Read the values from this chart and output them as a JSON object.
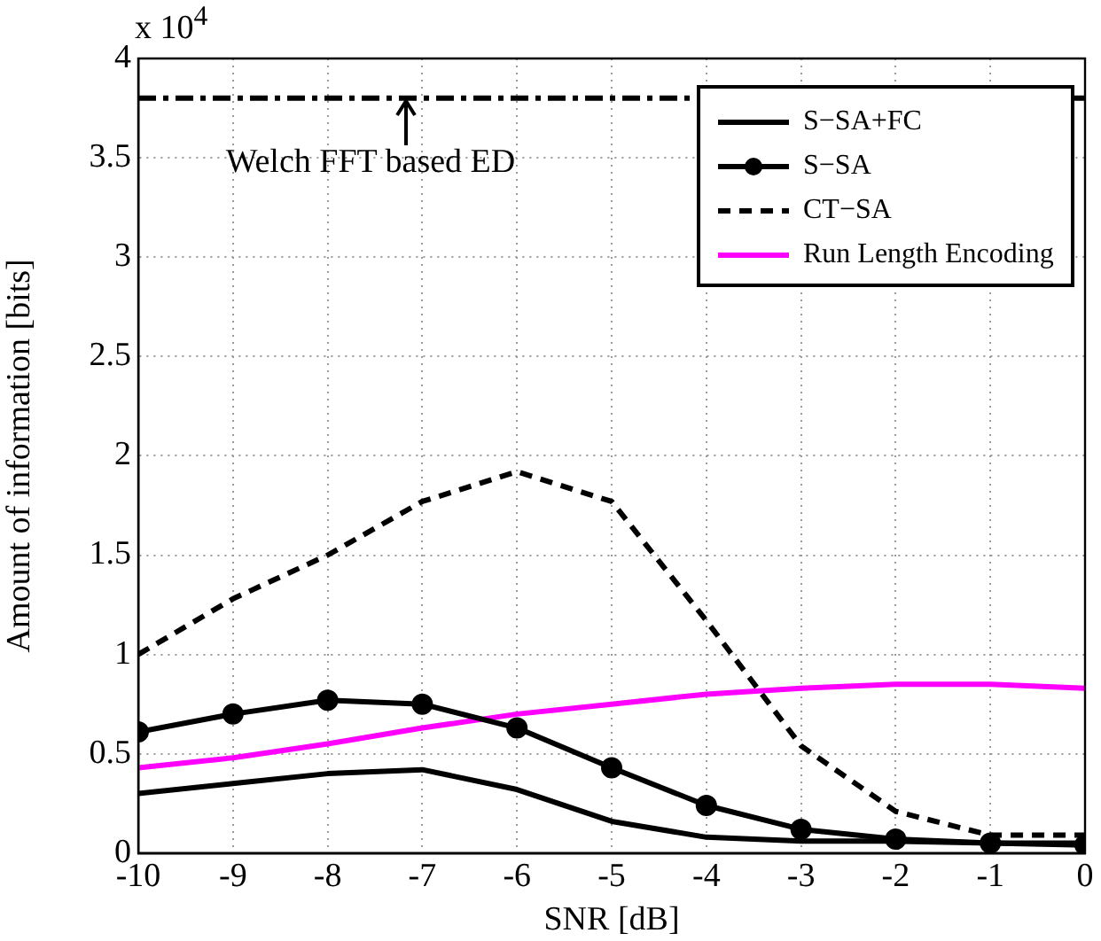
{
  "chart_data": {
    "type": "line",
    "xlabel": "SNR [dB]",
    "ylabel": "Amount of information [bits]",
    "annotations": [
      "x 10$^{4}$"
    ],
    "x": [
      -10,
      -9,
      -8,
      -7,
      -6,
      -5,
      -4,
      -3,
      -2,
      -1,
      0
    ],
    "xlim": [
      -10,
      0
    ],
    "xticks": [
      -10,
      -9,
      -8,
      -7,
      -6,
      -5,
      -4,
      -3,
      -2,
      -1,
      0
    ],
    "ylim": [
      0,
      4
    ],
    "yticks": [
      0,
      0.5,
      1,
      1.5,
      2,
      2.5,
      3,
      3.5,
      4
    ],
    "grid": true,
    "legend": "top right",
    "series": [
      {
        "name": "S−SA+FC",
        "color": "#000000",
        "marker": "none",
        "line_style": "solid",
        "values": [
          0.3,
          0.35,
          0.4,
          0.42,
          0.32,
          0.16,
          0.08,
          0.06,
          0.06,
          0.05,
          0.05
        ]
      },
      {
        "name": "S−SA",
        "color": "#000000",
        "marker": "circle",
        "line_style": "solid",
        "values": [
          0.61,
          0.7,
          0.77,
          0.75,
          0.63,
          0.43,
          0.24,
          0.12,
          0.07,
          0.05,
          0.04
        ]
      },
      {
        "name": "CT−SA",
        "color": "#000000",
        "marker": "none",
        "line_style": "dashed",
        "values": [
          1.0,
          1.28,
          1.5,
          1.77,
          1.92,
          1.77,
          1.17,
          0.54,
          0.21,
          0.09,
          0.09
        ]
      },
      {
        "name": "Run Length Encoding",
        "color": "#ff00ff",
        "marker": "none",
        "line_style": "solid",
        "values": [
          0.43,
          0.48,
          0.55,
          0.63,
          0.7,
          0.75,
          0.8,
          0.83,
          0.85,
          0.85,
          0.83
        ]
      }
    ],
    "ref_lines": [
      {
        "axis": "y",
        "value": 3.8,
        "label": "Welch FFT based ED",
        "color": "#000000",
        "line_style": "dashdot"
      }
    ]
  }
}
